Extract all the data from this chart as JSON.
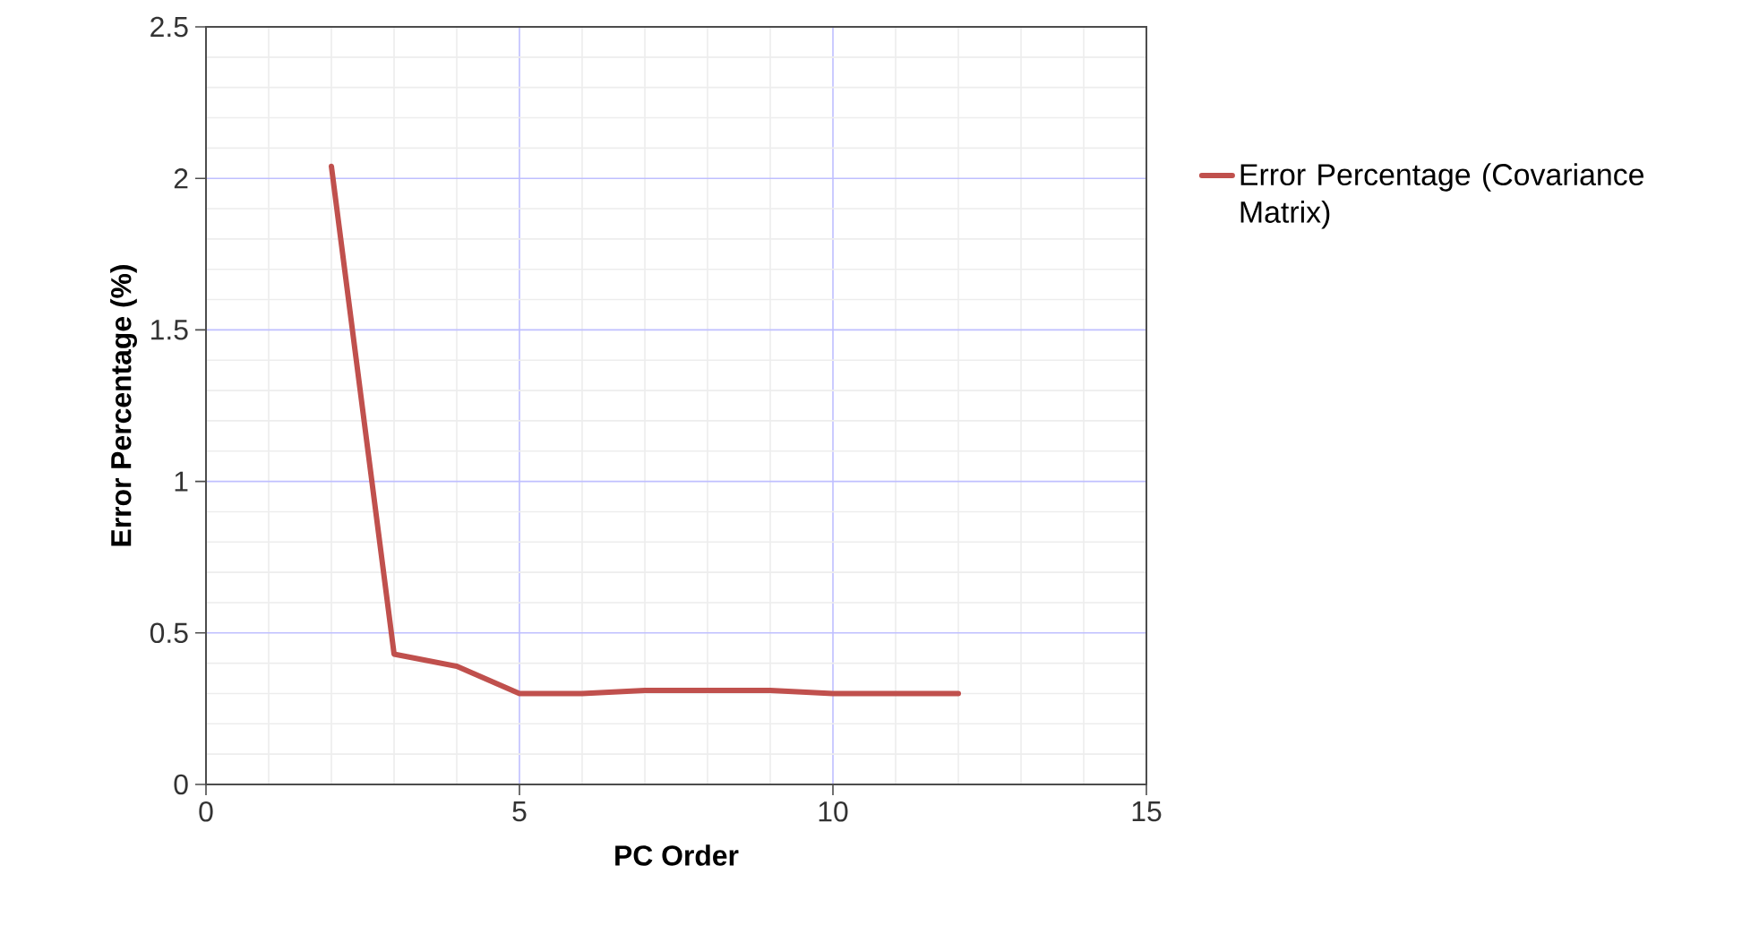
{
  "chart_data": {
    "type": "line",
    "xlabel": "PC Order",
    "ylabel": "Error Percentage (%)",
    "x": [
      2,
      3,
      4,
      5,
      6,
      7,
      8,
      9,
      10,
      11,
      12
    ],
    "series": [
      {
        "name": "Error Percentage (Covariance Matrix)",
        "color": "#c0504d",
        "values": [
          2.04,
          0.43,
          0.39,
          0.3,
          0.3,
          0.31,
          0.31,
          0.31,
          0.3,
          0.3,
          0.3
        ]
      }
    ],
    "xlim": [
      0,
      15
    ],
    "xticks": [
      0,
      5,
      10,
      15
    ],
    "ylim": [
      0,
      2.5
    ],
    "yticks": [
      0,
      0.5,
      1,
      1.5,
      2,
      2.5
    ],
    "grid": true,
    "legend": "right",
    "marker": "none",
    "line_style": "solid"
  }
}
